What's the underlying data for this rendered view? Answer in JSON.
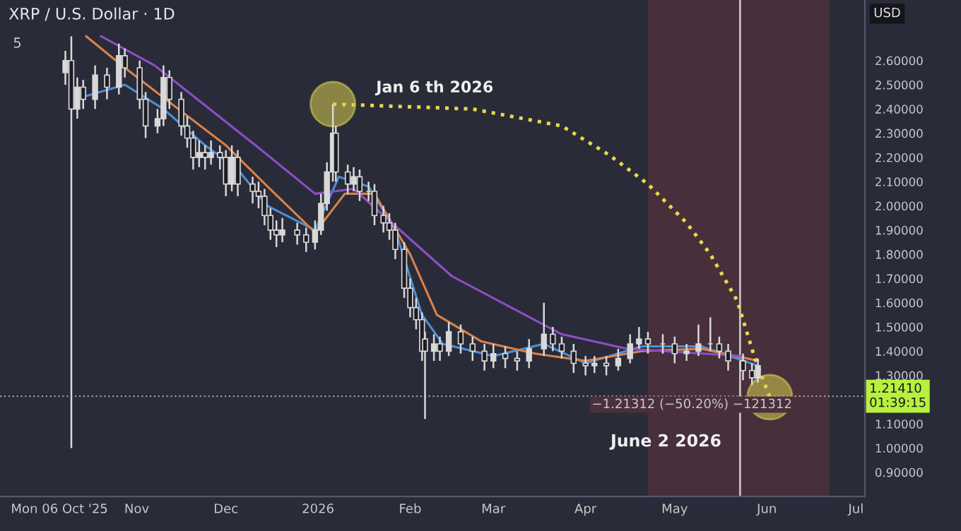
{
  "chart_data": {
    "type": "candlestick",
    "title": "XRP / U.S. Dollar · 1D",
    "subtitle": "5",
    "ylabel": "USD",
    "xlim": [
      "2025-09-16",
      "2026-07-04"
    ],
    "xticks": [
      {
        "value": "2025-10-06",
        "label": "Mon 06 Oct '25"
      },
      {
        "value": "2025-11-01",
        "label": "Nov"
      },
      {
        "value": "2025-12-01",
        "label": "Dec"
      },
      {
        "value": "2026-01-01",
        "label": "2026"
      },
      {
        "value": "2026-02-01",
        "label": "Feb"
      },
      {
        "value": "2026-03-01",
        "label": "Mar"
      },
      {
        "value": "2026-04-01",
        "label": "Apr"
      },
      {
        "value": "2026-05-01",
        "label": "May"
      },
      {
        "value": "2026-06-01",
        "label": "Jun"
      },
      {
        "value": "2026-07-01",
        "label": "Jul"
      }
    ],
    "ylim": [
      0.8,
      2.85
    ],
    "yticks": [
      {
        "value": 0.9,
        "label": "0.90000"
      },
      {
        "value": 1.0,
        "label": "1.00000"
      },
      {
        "value": 1.1,
        "label": "1.10000"
      },
      {
        "value": 1.3,
        "label": "1.30000"
      },
      {
        "value": 1.4,
        "label": "1.40000"
      },
      {
        "value": 1.5,
        "label": "1.50000"
      },
      {
        "value": 1.6,
        "label": "1.60000"
      },
      {
        "value": 1.7,
        "label": "1.70000"
      },
      {
        "value": 1.8,
        "label": "1.80000"
      },
      {
        "value": 1.9,
        "label": "1.90000"
      },
      {
        "value": 2.0,
        "label": "2.00000"
      },
      {
        "value": 2.1,
        "label": "2.10000"
      },
      {
        "value": 2.2,
        "label": "2.20000"
      },
      {
        "value": 2.3,
        "label": "2.30000"
      },
      {
        "value": 2.4,
        "label": "2.40000"
      },
      {
        "value": 2.5,
        "label": "2.50000"
      },
      {
        "value": 2.6,
        "label": "2.60000"
      }
    ],
    "grid": false,
    "legend": false,
    "bands": [
      {
        "axis": "x",
        "from": "2026-04-22",
        "to": "2026-06-22",
        "color": "#4a303c"
      }
    ],
    "ref_lines": [
      {
        "axis": "y",
        "value": 1.2141,
        "label": "1.21410\n01:39:15",
        "color": "#9a9a9a",
        "line_style": "dotted"
      },
      {
        "axis": "x",
        "value": "2026-05-23",
        "color": "#c8c0c8",
        "line_style": "solid"
      }
    ],
    "annotations": [
      {
        "text": "Jan 6 th 2026",
        "x": "2026-01-06",
        "y": 2.42
      },
      "−1.21312 (−50.20%) −121312",
      "June 2 2026"
    ],
    "series": [
      {
        "color": "#d8d8d8",
        "x": [
          "2025-10-08",
          "2025-10-10",
          "2025-10-12",
          "2025-10-14",
          "2025-10-18",
          "2025-10-22",
          "2025-10-26",
          "2025-10-28",
          "2025-11-02",
          "2025-11-04",
          "2025-11-08",
          "2025-11-10",
          "2025-11-12",
          "2025-11-16",
          "2025-11-18",
          "2025-11-20",
          "2025-11-22",
          "2025-11-24",
          "2025-11-26",
          "2025-11-29",
          "2025-12-01",
          "2025-12-03",
          "2025-12-05",
          "2025-12-10",
          "2025-12-12",
          "2025-12-14",
          "2025-12-16",
          "2025-12-18",
          "2025-12-20",
          "2025-12-25",
          "2025-12-28",
          "2025-12-31",
          "2026-01-02",
          "2026-01-04",
          "2026-01-06",
          "2026-01-07",
          "2026-01-11",
          "2026-01-13",
          "2026-01-15",
          "2026-01-18",
          "2026-01-20",
          "2026-01-23",
          "2026-01-25",
          "2026-01-27",
          "2026-01-30",
          "2026-02-01",
          "2026-02-03",
          "2026-02-05",
          "2026-02-06",
          "2026-02-09",
          "2026-02-11",
          "2026-02-14",
          "2026-02-18",
          "2026-02-22",
          "2026-02-26",
          "2026-03-01",
          "2026-03-05",
          "2026-03-09",
          "2026-03-13",
          "2026-03-18",
          "2026-03-21",
          "2026-03-24",
          "2026-03-28",
          "2026-04-01",
          "2026-04-04",
          "2026-04-08",
          "2026-04-12",
          "2026-04-16",
          "2026-04-19",
          "2026-04-22",
          "2026-04-27",
          "2026-05-01",
          "2026-05-05",
          "2026-05-09",
          "2026-05-13",
          "2026-05-16",
          "2026-05-19",
          "2026-05-24",
          "2026-05-27",
          "2026-05-29"
        ],
        "ohlc": [
          [
            2.55,
            2.64,
            2.5,
            2.6
          ],
          [
            2.6,
            2.7,
            1.0,
            2.4
          ],
          [
            2.4,
            2.53,
            2.36,
            2.49
          ],
          [
            2.49,
            2.52,
            2.4,
            2.44
          ],
          [
            2.44,
            2.58,
            2.4,
            2.54
          ],
          [
            2.54,
            2.57,
            2.44,
            2.49
          ],
          [
            2.49,
            2.67,
            2.46,
            2.62
          ],
          [
            2.62,
            2.65,
            2.53,
            2.57
          ],
          [
            2.57,
            2.6,
            2.4,
            2.44
          ],
          [
            2.44,
            2.47,
            2.28,
            2.33
          ],
          [
            2.33,
            2.4,
            2.3,
            2.36
          ],
          [
            2.36,
            2.58,
            2.33,
            2.53
          ],
          [
            2.53,
            2.56,
            2.4,
            2.44
          ],
          [
            2.44,
            2.47,
            2.29,
            2.33
          ],
          [
            2.33,
            2.37,
            2.24,
            2.28
          ],
          [
            2.28,
            2.31,
            2.15,
            2.2
          ],
          [
            2.2,
            2.27,
            2.16,
            2.22
          ],
          [
            2.22,
            2.25,
            2.15,
            2.2
          ],
          [
            2.2,
            2.27,
            2.17,
            2.22
          ],
          [
            2.22,
            2.25,
            2.15,
            2.2
          ],
          [
            2.2,
            2.23,
            2.04,
            2.09
          ],
          [
            2.09,
            2.25,
            2.06,
            2.2
          ],
          [
            2.2,
            2.23,
            2.04,
            2.09
          ],
          [
            2.09,
            2.12,
            2.01,
            2.06
          ],
          [
            2.06,
            2.1,
            1.99,
            2.04
          ],
          [
            2.04,
            2.07,
            1.92,
            1.96
          ],
          [
            1.96,
            1.99,
            1.86,
            1.9
          ],
          [
            1.9,
            1.94,
            1.83,
            1.88
          ],
          [
            1.88,
            1.95,
            1.85,
            1.9
          ],
          [
            1.9,
            1.93,
            1.84,
            1.88
          ],
          [
            1.88,
            1.91,
            1.81,
            1.85
          ],
          [
            1.85,
            1.94,
            1.82,
            1.9
          ],
          [
            1.9,
            2.05,
            1.88,
            2.01
          ],
          [
            2.01,
            2.18,
            1.98,
            2.14
          ],
          [
            2.14,
            2.42,
            2.1,
            2.3
          ],
          [
            2.3,
            2.33,
            2.1,
            2.14
          ],
          [
            2.14,
            2.17,
            2.05,
            2.09
          ],
          [
            2.09,
            2.16,
            2.06,
            2.12
          ],
          [
            2.12,
            2.15,
            2.02,
            2.06
          ],
          [
            2.06,
            2.1,
            2.02,
            2.06
          ],
          [
            2.06,
            2.09,
            1.92,
            1.96
          ],
          [
            1.96,
            2.0,
            1.89,
            1.93
          ],
          [
            1.93,
            1.97,
            1.86,
            1.9
          ],
          [
            1.9,
            1.93,
            1.78,
            1.82
          ],
          [
            1.82,
            1.85,
            1.62,
            1.66
          ],
          [
            1.66,
            1.7,
            1.54,
            1.58
          ],
          [
            1.58,
            1.62,
            1.49,
            1.53
          ],
          [
            1.53,
            1.56,
            1.36,
            1.4
          ],
          [
            1.45,
            1.48,
            1.12,
            1.4
          ],
          [
            1.4,
            1.47,
            1.36,
            1.43
          ],
          [
            1.43,
            1.46,
            1.36,
            1.4
          ],
          [
            1.4,
            1.52,
            1.38,
            1.48
          ],
          [
            1.48,
            1.51,
            1.39,
            1.43
          ],
          [
            1.43,
            1.46,
            1.36,
            1.4
          ],
          [
            1.4,
            1.43,
            1.32,
            1.36
          ],
          [
            1.36,
            1.43,
            1.33,
            1.39
          ],
          [
            1.39,
            1.42,
            1.33,
            1.37
          ],
          [
            1.37,
            1.4,
            1.32,
            1.36
          ],
          [
            1.36,
            1.45,
            1.33,
            1.41
          ],
          [
            1.41,
            1.6,
            1.38,
            1.47
          ],
          [
            1.47,
            1.5,
            1.4,
            1.43
          ],
          [
            1.43,
            1.46,
            1.37,
            1.4
          ],
          [
            1.4,
            1.43,
            1.31,
            1.35
          ],
          [
            1.35,
            1.38,
            1.3,
            1.34
          ],
          [
            1.34,
            1.38,
            1.31,
            1.35
          ],
          [
            1.35,
            1.38,
            1.3,
            1.34
          ],
          [
            1.34,
            1.41,
            1.32,
            1.37
          ],
          [
            1.37,
            1.47,
            1.35,
            1.43
          ],
          [
            1.43,
            1.5,
            1.41,
            1.45
          ],
          [
            1.45,
            1.48,
            1.39,
            1.43
          ],
          [
            1.43,
            1.47,
            1.39,
            1.43
          ],
          [
            1.43,
            1.46,
            1.35,
            1.39
          ],
          [
            1.39,
            1.43,
            1.36,
            1.4
          ],
          [
            1.4,
            1.51,
            1.38,
            1.43
          ],
          [
            1.43,
            1.54,
            1.4,
            1.43
          ],
          [
            1.43,
            1.46,
            1.37,
            1.4
          ],
          [
            1.4,
            1.43,
            1.32,
            1.36
          ],
          [
            1.36,
            1.39,
            1.28,
            1.32
          ],
          [
            1.32,
            1.35,
            1.26,
            1.29
          ],
          [
            1.29,
            1.37,
            1.27,
            1.34
          ]
        ]
      },
      {
        "type": "line",
        "color": "#4a8fd8",
        "x": [
          "2025-10-14",
          "2025-10-28",
          "2025-11-10",
          "2025-11-24",
          "2025-12-05",
          "2025-12-15",
          "2025-12-31",
          "2026-01-08",
          "2026-01-18",
          "2026-01-27",
          "2026-02-05",
          "2026-02-12",
          "2026-03-01",
          "2026-03-18",
          "2026-04-01",
          "2026-04-20",
          "2026-05-10",
          "2026-05-29"
        ],
        "values": [
          2.45,
          2.5,
          2.4,
          2.25,
          2.15,
          2.0,
          1.9,
          2.12,
          2.08,
          1.9,
          1.55,
          1.43,
          1.38,
          1.43,
          1.35,
          1.42,
          1.42,
          1.34
        ]
      },
      {
        "type": "line",
        "color": "#d9824a",
        "x": [
          "2025-10-15",
          "2025-10-28",
          "2025-11-15",
          "2025-12-01",
          "2025-12-15",
          "2025-12-31",
          "2026-01-10",
          "2026-01-20",
          "2026-02-01",
          "2026-02-10",
          "2026-02-25",
          "2026-03-15",
          "2026-04-01",
          "2026-04-20",
          "2026-05-10",
          "2026-05-29"
        ],
        "values": [
          2.7,
          2.57,
          2.4,
          2.25,
          2.08,
          1.89,
          2.05,
          2.05,
          1.8,
          1.55,
          1.44,
          1.39,
          1.36,
          1.4,
          1.41,
          1.36
        ]
      },
      {
        "type": "line",
        "color": "#8a4fc8",
        "x": [
          "2025-10-20",
          "2025-11-07",
          "2025-12-12",
          "2025-12-31",
          "2026-01-13",
          "2026-02-15",
          "2026-03-24",
          "2026-04-15",
          "2026-05-23"
        ],
        "values": [
          2.7,
          2.58,
          2.24,
          2.05,
          2.07,
          1.71,
          1.47,
          1.41,
          1.38
        ]
      },
      {
        "type": "line",
        "color": "#e8d94a",
        "line_style": "dotted",
        "x": [
          "2026-01-06",
          "2026-02-22",
          "2026-03-24",
          "2026-04-09",
          "2026-04-22",
          "2026-05-05",
          "2026-05-13",
          "2026-05-22",
          "2026-05-28",
          "2026-06-02"
        ],
        "values": [
          2.42,
          2.4,
          2.33,
          2.21,
          2.09,
          1.93,
          1.8,
          1.61,
          1.37,
          1.21
        ]
      },
      {
        "type": "scatter",
        "color": "#d8cf50",
        "marker": "circle",
        "x": [
          "2026-01-06",
          "2026-06-02"
        ],
        "values": [
          2.42,
          1.21
        ]
      }
    ]
  }
}
